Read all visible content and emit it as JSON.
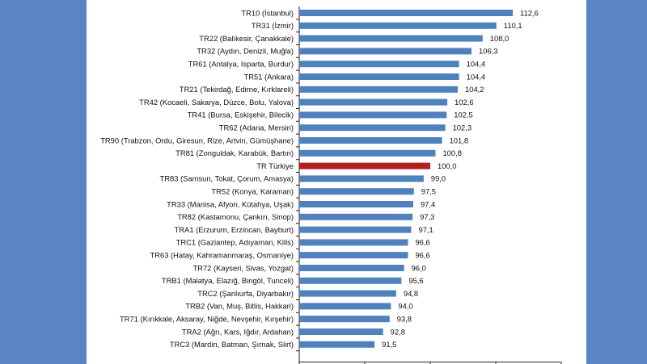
{
  "colors": {
    "background": "#5b84c4",
    "panel": "#ffffff",
    "bar": "#4f81bd",
    "highlight_bar": "#b41d1d"
  },
  "chart_data": {
    "type": "bar",
    "orientation": "horizontal",
    "title": "",
    "xlabel": "",
    "ylabel": "",
    "xlim": [
      80,
      120
    ],
    "highlight_category": "TR Türkiye",
    "categories": [
      "TR10 (İstanbul)",
      "TR31 (İzmir)",
      "TR22 (Balıkesir, Çanakkale)",
      "TR32 (Aydın, Denizli, Muğla)",
      "TR61 (Antalya, Isparta, Burdur)",
      "TR51 (Ankara)",
      "TR21 (Tekirdağ, Edirne, Kırklareli)",
      "TR42 (Kocaeli, Sakarya, Düzce, Bolu, Yalova)",
      "TR41 (Bursa, Eskişehir, Bilecik)",
      "TR62 (Adana, Mersin)",
      "TR90 (Trabzon, Ordu, Giresun, Rize, Artvin, Gümüşhane)",
      "TR81 (Zonguldak, Karabük, Bartın)",
      "TR Türkiye",
      "TR83 (Samsun, Tokat, Çorum, Amasya)",
      "TR52 (Konya, Karaman)",
      "TR33 (Manisa, Afyon, Kütahya, Uşak)",
      "TR82 (Kastamonu, Çankırı, Sinop)",
      "TRA1 (Erzurum, Erzincan, Bayburt)",
      "TRC1 (Gaziantep, Adıyaman, Kilis)",
      "TR63 (Hatay, Kahramanmaraş, Osmaniye)",
      "TR72 (Kayseri, Sivas, Yozgat)",
      "TRB1 (Malatya, Elazığ, Bingöl, Tunceli)",
      "TRC2 (Şanlıurfa, Diyarbakır)",
      "TRB2 (Van, Muş, Bitlis, Hakkari)",
      "TR71 (Kırıkkale, Aksaray, Niğde, Nevşehir, Kırşehir)",
      "TRA2 (Ağrı, Kars, Iğdır, Ardahan)",
      "TRC3 (Mardin, Batman, Şırnak, Siirt)"
    ],
    "values": [
      112.6,
      110.1,
      108.0,
      106.3,
      104.4,
      104.4,
      104.2,
      102.6,
      102.5,
      102.3,
      101.8,
      100.8,
      100.0,
      99.0,
      97.5,
      97.4,
      97.3,
      97.1,
      96.6,
      96.6,
      96.0,
      95.6,
      94.8,
      94.0,
      93.8,
      92.8,
      91.5
    ],
    "value_labels": [
      "112,6",
      "110,1",
      "108,0",
      "106,3",
      "104,4",
      "104,4",
      "104,2",
      "102,6",
      "102,5",
      "102,3",
      "101,8",
      "100,8",
      "100,0",
      "99,0",
      "97,5",
      "97,4",
      "97,3",
      "97,1",
      "96,6",
      "96,6",
      "96,0",
      "95,6",
      "94,8",
      "94,0",
      "93,8",
      "92,8",
      "91,5"
    ],
    "x_ticks": [
      80,
      90,
      100,
      110,
      120
    ]
  }
}
